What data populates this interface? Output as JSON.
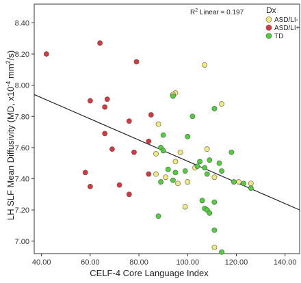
{
  "chart_data": {
    "type": "scatter",
    "xlabel": "CELF-4 Core Language Index",
    "ylabel": "LH SLF Mean Diffusivity (MD, x10",
    "ylabel_exp": "-4",
    "ylabel_suffix": " mm",
    "ylabel_sup2": "2",
    "ylabel_end": "/s)",
    "xlim": [
      37,
      146
    ],
    "ylim": [
      6.92,
      8.52
    ],
    "x_ticks": [
      40,
      60,
      80,
      100,
      120,
      140
    ],
    "x_tick_labels": [
      "40.00",
      "60.00",
      "80.00",
      "100.00",
      "120.00",
      "140.00"
    ],
    "y_ticks": [
      7.0,
      7.2,
      7.4,
      7.6,
      7.8,
      8.0,
      8.2,
      8.4
    ],
    "y_tick_labels": [
      "7.00",
      "7.20",
      "7.40",
      "7.60",
      "7.80",
      "8.00",
      "8.20",
      "8.40"
    ],
    "grid": false,
    "legend": {
      "title": "Dx",
      "position": "top-right",
      "entries": [
        {
          "label": "ASD/LI-",
          "color": "#f0ea7a"
        },
        {
          "label": "ASD/LI+",
          "color": "#d9363e"
        },
        {
          "label": "TD",
          "color": "#4fcf3a"
        }
      ]
    },
    "annotation": {
      "label": "R",
      "sup": "2",
      "text": " Linear = 0.197"
    },
    "fit_line": {
      "x": [
        37,
        146
      ],
      "y": [
        7.94,
        7.2
      ]
    },
    "series": [
      {
        "name": "ASD/LI-",
        "color": "#f0ea7a",
        "points": [
          {
            "x": 88,
            "y": 7.75
          },
          {
            "x": 95,
            "y": 7.95
          },
          {
            "x": 94,
            "y": 7.94
          },
          {
            "x": 107,
            "y": 8.13
          },
          {
            "x": 114,
            "y": 7.88
          },
          {
            "x": 108,
            "y": 7.59
          },
          {
            "x": 97,
            "y": 7.57
          },
          {
            "x": 87,
            "y": 7.56
          },
          {
            "x": 95,
            "y": 7.51
          },
          {
            "x": 103,
            "y": 7.47
          },
          {
            "x": 87,
            "y": 7.43
          },
          {
            "x": 91,
            "y": 7.41
          },
          {
            "x": 96,
            "y": 7.37
          },
          {
            "x": 100,
            "y": 7.38
          },
          {
            "x": 111,
            "y": 7.41
          },
          {
            "x": 121,
            "y": 7.38
          },
          {
            "x": 126,
            "y": 7.37
          },
          {
            "x": 99,
            "y": 7.22
          },
          {
            "x": 111,
            "y": 6.96
          }
        ]
      },
      {
        "name": "ASD/LI+",
        "color": "#d9363e",
        "points": [
          {
            "x": 42,
            "y": 8.2
          },
          {
            "x": 64,
            "y": 8.27
          },
          {
            "x": 79,
            "y": 8.15
          },
          {
            "x": 60,
            "y": 7.9
          },
          {
            "x": 67,
            "y": 7.91
          },
          {
            "x": 66,
            "y": 7.86
          },
          {
            "x": 85,
            "y": 7.81
          },
          {
            "x": 76,
            "y": 7.77
          },
          {
            "x": 66,
            "y": 7.69
          },
          {
            "x": 84,
            "y": 7.64
          },
          {
            "x": 69,
            "y": 7.59
          },
          {
            "x": 78,
            "y": 7.57
          },
          {
            "x": 58,
            "y": 7.44
          },
          {
            "x": 84,
            "y": 7.43
          },
          {
            "x": 60,
            "y": 7.35
          },
          {
            "x": 72,
            "y": 7.36
          },
          {
            "x": 76,
            "y": 7.3
          }
        ]
      },
      {
        "name": "TD",
        "color": "#4fcf3a",
        "points": [
          {
            "x": 94,
            "y": 7.93
          },
          {
            "x": 111,
            "y": 7.85
          },
          {
            "x": 102,
            "y": 7.8
          },
          {
            "x": 90,
            "y": 7.68
          },
          {
            "x": 100,
            "y": 7.67
          },
          {
            "x": 109,
            "y": 7.52
          },
          {
            "x": 118,
            "y": 7.57
          },
          {
            "x": 89,
            "y": 7.6
          },
          {
            "x": 90,
            "y": 7.58
          },
          {
            "x": 105,
            "y": 7.51
          },
          {
            "x": 113,
            "y": 7.5
          },
          {
            "x": 104,
            "y": 7.48
          },
          {
            "x": 107,
            "y": 7.47
          },
          {
            "x": 92,
            "y": 7.46
          },
          {
            "x": 99,
            "y": 7.45
          },
          {
            "x": 95,
            "y": 7.44
          },
          {
            "x": 114,
            "y": 7.45
          },
          {
            "x": 108,
            "y": 7.43
          },
          {
            "x": 119,
            "y": 7.38
          },
          {
            "x": 123,
            "y": 7.37
          },
          {
            "x": 126,
            "y": 7.34
          },
          {
            "x": 89,
            "y": 7.38
          },
          {
            "x": 94,
            "y": 7.39
          },
          {
            "x": 106,
            "y": 7.26
          },
          {
            "x": 111,
            "y": 7.25
          },
          {
            "x": 107,
            "y": 7.21
          },
          {
            "x": 108,
            "y": 7.2
          },
          {
            "x": 109,
            "y": 7.18
          },
          {
            "x": 88,
            "y": 7.16
          },
          {
            "x": 111,
            "y": 7.07
          },
          {
            "x": 114,
            "y": 6.93
          }
        ]
      }
    ]
  }
}
